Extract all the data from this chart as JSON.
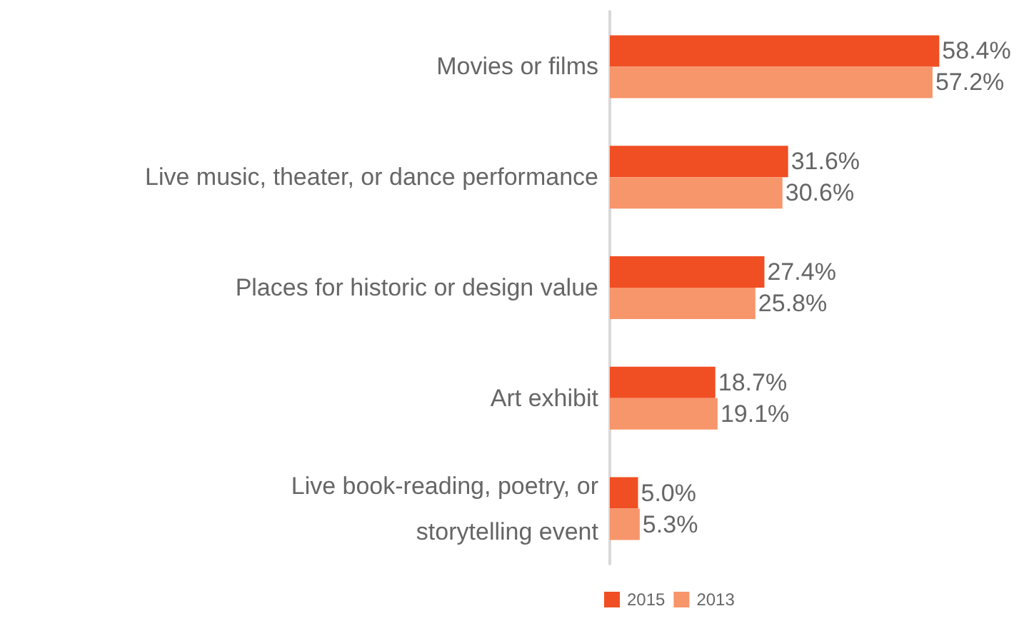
{
  "chart_data": {
    "type": "bar",
    "orientation": "horizontal",
    "categories": [
      "Movies or films",
      "Live music, theater, or dance performance",
      "Places for historic or design value",
      "Art exhibit",
      "Live book-reading, poetry, or\nstorytelling event"
    ],
    "series": [
      {
        "name": "2015",
        "color": "#f04e23",
        "values": [
          58.4,
          31.6,
          27.4,
          18.7,
          5.0
        ],
        "value_labels": [
          "58.4%",
          "31.6%",
          "27.4%",
          "18.7%",
          "5.0%"
        ]
      },
      {
        "name": "2013",
        "color": "#f7956b",
        "values": [
          57.2,
          30.6,
          25.8,
          19.1,
          5.3
        ],
        "value_labels": [
          "57.2%",
          "30.6%",
          "25.8%",
          "19.1%",
          "5.3%"
        ]
      }
    ],
    "tick_labels": "y",
    "legend": "bottom",
    "grid": false
  }
}
